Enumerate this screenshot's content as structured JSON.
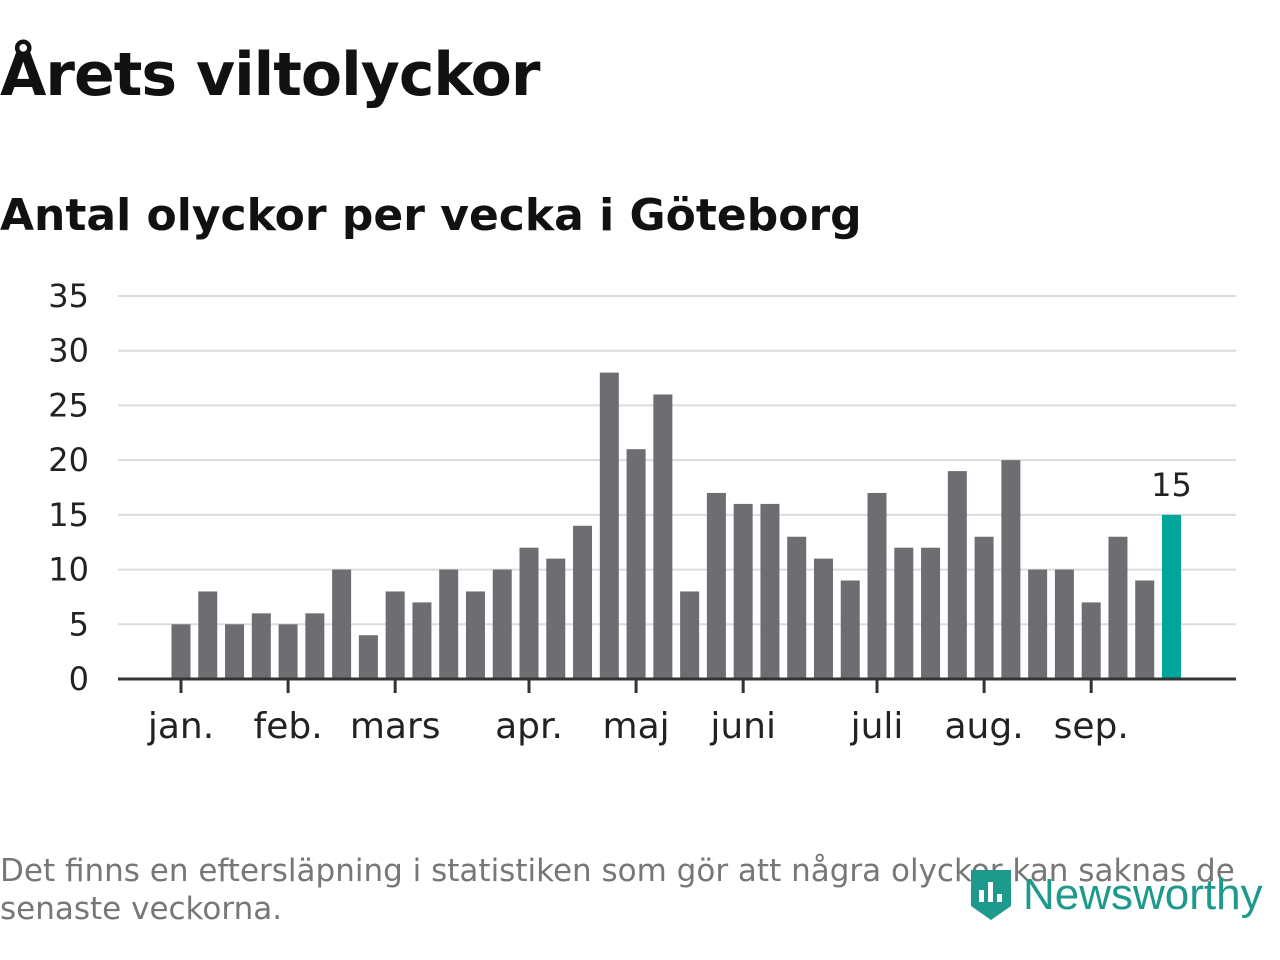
{
  "header": {
    "title": "Årets viltolyckor",
    "subtitle": "Antal olyckor per vecka i Göteborg"
  },
  "footer": {
    "note": "Det finns en eftersläpning i statistiken som gör att några olyckor kan saknas de senaste veckorna.",
    "brand": "Newsworthy",
    "brand_icon": "chart-logo-icon"
  },
  "colors": {
    "bar": "#6e6d72",
    "highlight": "#00a699",
    "grid": "#dcdcdc",
    "axis": "#333333",
    "brand": "#1d9a8c"
  },
  "chart_data": {
    "type": "bar",
    "title": "Antal olyckor per vecka i Göteborg",
    "xlabel": "",
    "ylabel": "",
    "ylim": [
      0,
      35
    ],
    "yticks": [
      0,
      5,
      10,
      15,
      20,
      25,
      30,
      35
    ],
    "grid": true,
    "x": [
      1,
      2,
      3,
      4,
      5,
      6,
      7,
      8,
      9,
      10,
      11,
      12,
      13,
      14,
      15,
      16,
      17,
      18,
      19,
      20,
      21,
      22,
      23,
      24,
      25,
      26,
      27,
      28,
      29,
      30,
      31,
      32,
      33,
      34,
      35,
      36,
      37,
      38
    ],
    "values": [
      5,
      8,
      5,
      6,
      5,
      6,
      10,
      4,
      8,
      7,
      10,
      8,
      10,
      12,
      11,
      14,
      28,
      21,
      26,
      8,
      17,
      16,
      16,
      13,
      11,
      9,
      17,
      12,
      12,
      19,
      13,
      20,
      10,
      10,
      7,
      13,
      9,
      15
    ],
    "highlight_index": 37,
    "highlight_label": "15",
    "month_ticks": [
      {
        "label": "jan.",
        "week": 1
      },
      {
        "label": "feb.",
        "week": 5
      },
      {
        "label": "mars",
        "week": 9
      },
      {
        "label": "apr.",
        "week": 14
      },
      {
        "label": "maj",
        "week": 18
      },
      {
        "label": "juni",
        "week": 22
      },
      {
        "label": "juli",
        "week": 27
      },
      {
        "label": "aug.",
        "week": 31
      },
      {
        "label": "sep.",
        "week": 35
      }
    ]
  }
}
